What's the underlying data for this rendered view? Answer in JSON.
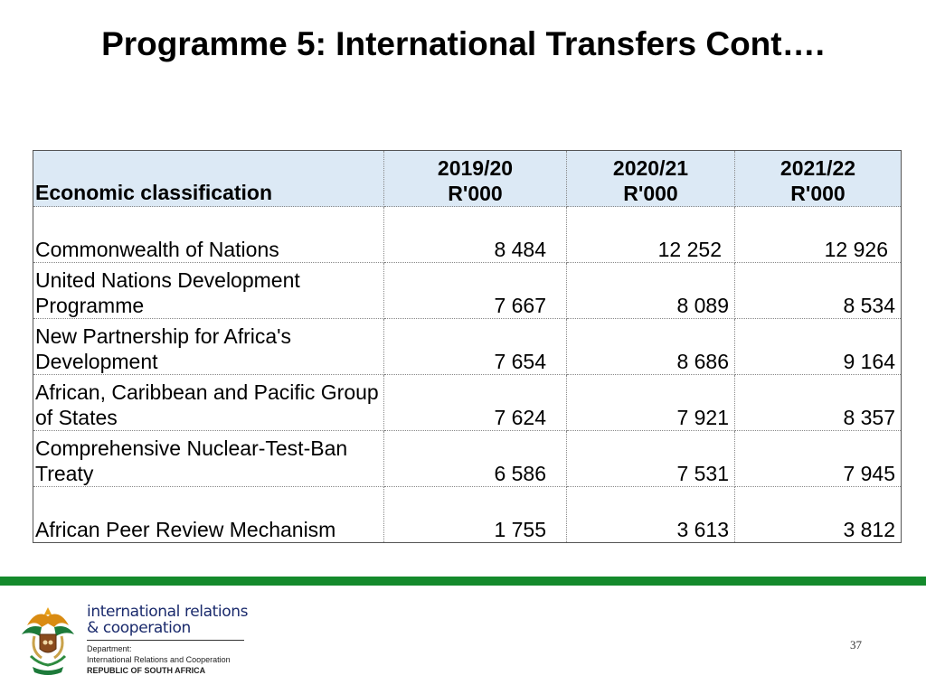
{
  "slide": {
    "title": "Programme 5: International Transfers  Cont….",
    "page_number": "37"
  },
  "table": {
    "header": {
      "label": "Economic classification",
      "years": [
        {
          "year": "2019/20",
          "unit": "R'000"
        },
        {
          "year": "2020/21",
          "unit": "R'000"
        },
        {
          "year": "2021/22",
          "unit": "R'000"
        }
      ]
    },
    "rows": [
      {
        "name": "Commonwealth of Nations",
        "values": [
          "8 484",
          "12 252",
          "12 926"
        ]
      },
      {
        "name": "United Nations Development Programme",
        "values": [
          "7 667",
          "8 089",
          "8 534"
        ]
      },
      {
        "name": "New Partnership for Africa's Development",
        "values": [
          "7 654",
          "8 686",
          "9 164"
        ]
      },
      {
        "name": "African, Caribbean and Pacific Group of States",
        "values": [
          "7 624",
          "7 921",
          "8 357"
        ]
      },
      {
        "name": "Comprehensive Nuclear-Test-Ban Treaty",
        "values": [
          "6 586",
          "7 531",
          "7 945"
        ]
      },
      {
        "name": "African Peer Review Mechanism",
        "values": [
          "1 755",
          "3 613",
          "3 812"
        ]
      }
    ]
  },
  "footer": {
    "brand_line1": "international relations",
    "brand_line2": "& cooperation",
    "dept_label": "Department:",
    "dept_name": "International Relations and Cooperation",
    "country": "REPUBLIC OF SOUTH AFRICA",
    "colors": {
      "bar": "#148a2c",
      "brand_text": "#1a2a6c"
    },
    "logo_icon": "coat-of-arms-icon"
  }
}
